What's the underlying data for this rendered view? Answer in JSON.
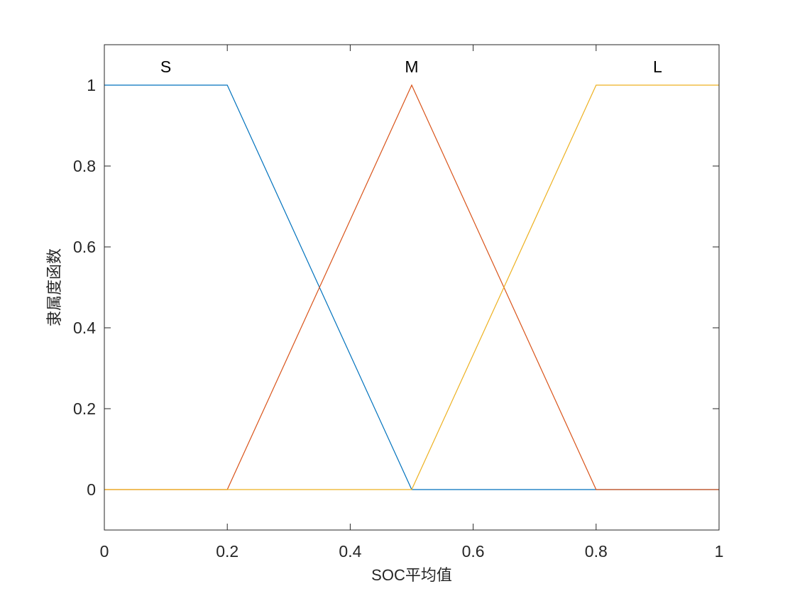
{
  "chart_data": {
    "type": "line",
    "xlabel": "SOC平均值",
    "ylabel": "隶属度函数",
    "xlim": [
      0,
      1
    ],
    "ylim": [
      -0.1,
      1.1
    ],
    "xticks": [
      0,
      0.2,
      0.4,
      0.6,
      0.8,
      1
    ],
    "yticks": [
      0,
      0.2,
      0.4,
      0.6,
      0.8,
      1
    ],
    "series": [
      {
        "name": "S",
        "color": "#0072BD",
        "x": [
          0,
          0.2,
          0.5,
          1
        ],
        "values": [
          1,
          1,
          0,
          0
        ]
      },
      {
        "name": "M",
        "color": "#D95319",
        "x": [
          0,
          0.2,
          0.5,
          0.8,
          1
        ],
        "values": [
          0,
          0,
          1,
          0,
          0
        ]
      },
      {
        "name": "L",
        "color": "#EDB120",
        "x": [
          0,
          0.5,
          0.8,
          1
        ],
        "values": [
          0,
          0,
          1,
          1
        ]
      }
    ]
  }
}
